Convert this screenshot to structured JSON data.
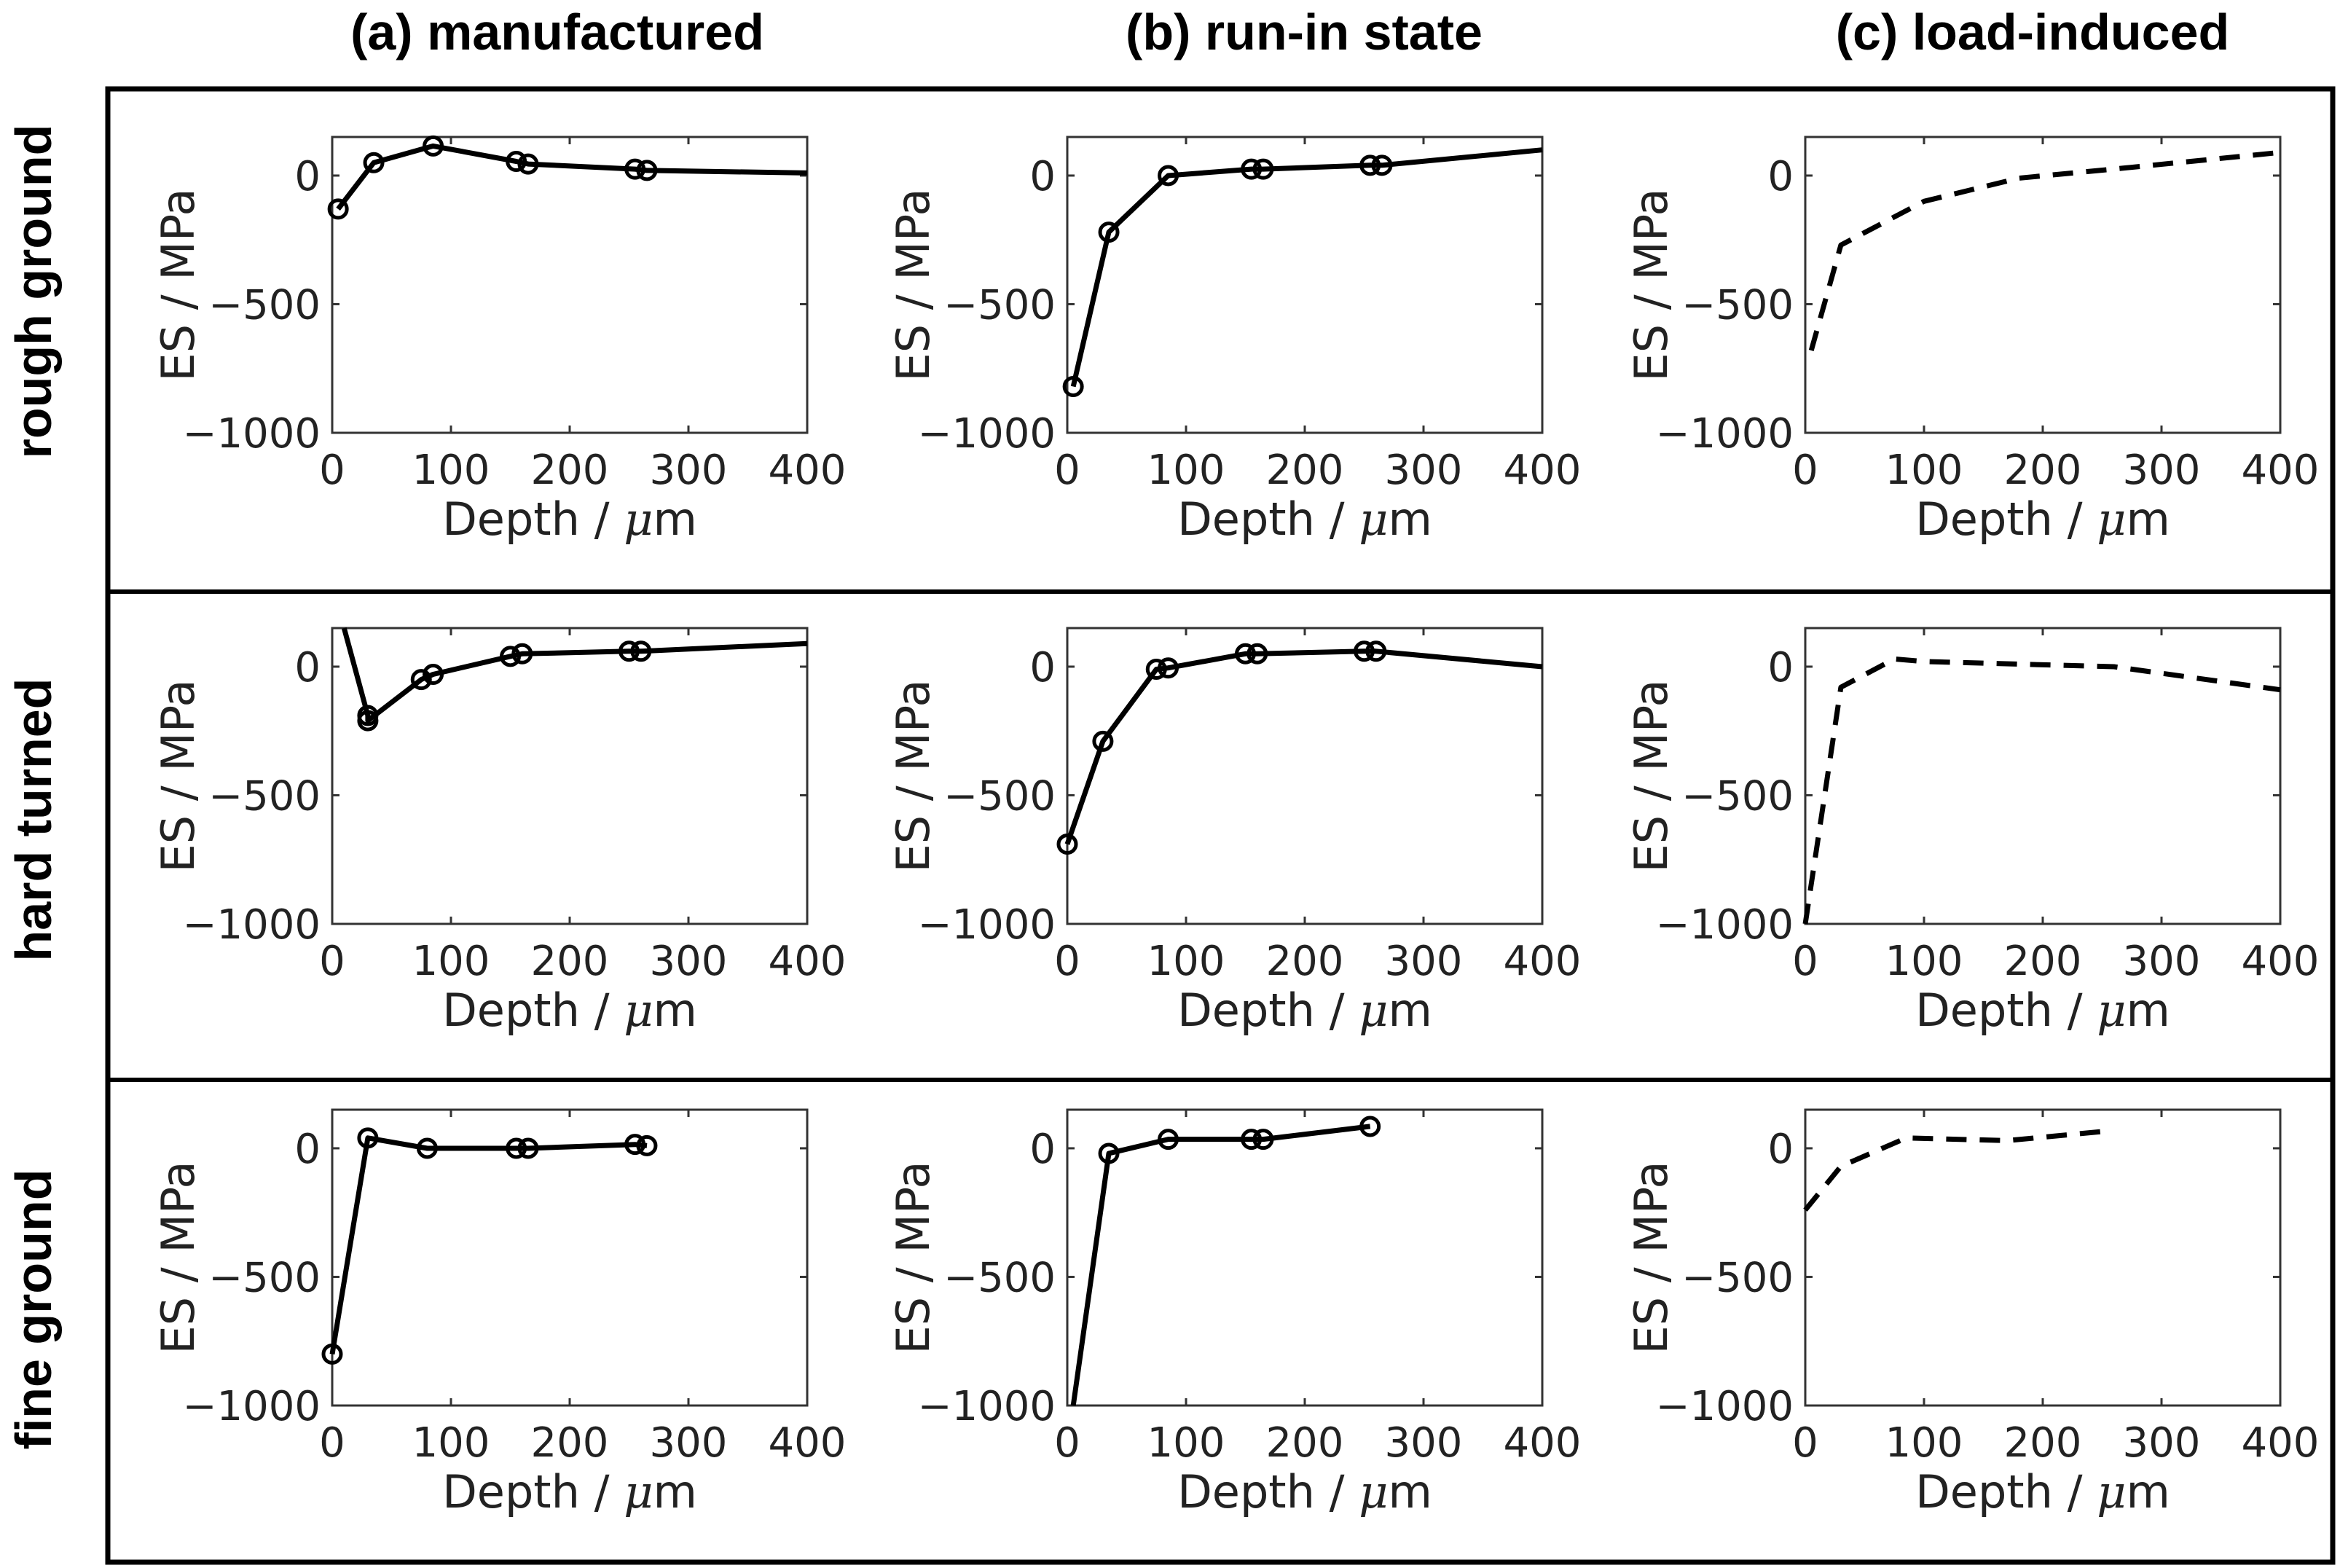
{
  "column_titles": [
    "(a) manufactured",
    "(b) run-in state",
    "(c) load-induced"
  ],
  "row_labels": [
    "rough ground",
    "hard turned",
    "fine ground"
  ],
  "chart_data": [
    {
      "type": "line",
      "row": "rough ground",
      "column": "(a) manufactured",
      "style": "solid-markers",
      "xlabel_text": "Depth /",
      "xlabel_unit": "μm",
      "ylabel": "ES / MPa",
      "xlim": [
        0,
        400
      ],
      "ylim": [
        -1000,
        150
      ],
      "xticks": [
        0,
        100,
        200,
        300,
        400
      ],
      "yticks": [
        -1000,
        -500,
        0
      ],
      "x": [
        5,
        35,
        85,
        155,
        165,
        255,
        265,
        400
      ],
      "y": [
        -130,
        50,
        115,
        55,
        45,
        25,
        20,
        10
      ],
      "marked_points": 7
    },
    {
      "type": "line",
      "row": "rough ground",
      "column": "(b) run-in state",
      "style": "solid-markers",
      "xlabel_text": "Depth /",
      "xlabel_unit": "μm",
      "ylabel": "ES / MPa",
      "xlim": [
        0,
        400
      ],
      "ylim": [
        -1000,
        150
      ],
      "xticks": [
        0,
        100,
        200,
        300,
        400
      ],
      "yticks": [
        -1000,
        -500,
        0
      ],
      "x": [
        5,
        35,
        85,
        155,
        165,
        255,
        265,
        400
      ],
      "y": [
        -820,
        -220,
        0,
        25,
        25,
        40,
        40,
        100
      ],
      "marked_points": 7
    },
    {
      "type": "line",
      "row": "rough ground",
      "column": "(c) load-induced",
      "style": "dashed",
      "xlabel_text": "Depth /",
      "xlabel_unit": "μm",
      "ylabel": "ES / MPa",
      "xlim": [
        0,
        400
      ],
      "ylim": [
        -1000,
        150
      ],
      "xticks": [
        0,
        100,
        200,
        300,
        400
      ],
      "yticks": [
        -1000,
        -500,
        0
      ],
      "x": [
        5,
        30,
        100,
        180,
        270,
        400
      ],
      "y": [
        -680,
        -270,
        -100,
        -10,
        30,
        90
      ],
      "marked_points": 0
    },
    {
      "type": "line",
      "row": "hard turned",
      "column": "(a) manufactured",
      "style": "solid-markers",
      "xlabel_text": "Depth /",
      "xlabel_unit": "μm",
      "ylabel": "ES / MPa",
      "xlim": [
        0,
        400
      ],
      "ylim": [
        -1000,
        150
      ],
      "xticks": [
        0,
        100,
        200,
        300,
        400
      ],
      "yticks": [
        -1000,
        -500,
        0
      ],
      "x": [
        10,
        30,
        30,
        75,
        85,
        150,
        160,
        250,
        260,
        400
      ],
      "y": [
        150,
        -190,
        -210,
        -50,
        -30,
        40,
        50,
        60,
        60,
        90
      ],
      "marked_points": 8,
      "marker_start_index": 1
    },
    {
      "type": "line",
      "row": "hard turned",
      "column": "(b) run-in state",
      "style": "solid-markers",
      "xlabel_text": "Depth /",
      "xlabel_unit": "μm",
      "ylabel": "ES / MPa",
      "xlim": [
        0,
        400
      ],
      "ylim": [
        -1000,
        150
      ],
      "xticks": [
        0,
        100,
        200,
        300,
        400
      ],
      "yticks": [
        -1000,
        -500,
        0
      ],
      "x": [
        0,
        30,
        75,
        85,
        150,
        160,
        250,
        260,
        400
      ],
      "y": [
        -690,
        -290,
        -10,
        -5,
        50,
        50,
        60,
        60,
        0
      ],
      "marked_points": 8
    },
    {
      "type": "line",
      "row": "hard turned",
      "column": "(c) load-induced",
      "style": "dashed",
      "xlabel_text": "Depth /",
      "xlabel_unit": "μm",
      "ylabel": "ES / MPa",
      "xlim": [
        0,
        400
      ],
      "ylim": [
        -1000,
        150
      ],
      "xticks": [
        0,
        100,
        200,
        300,
        400
      ],
      "yticks": [
        -1000,
        -500,
        0
      ],
      "x": [
        0,
        30,
        75,
        100,
        260,
        400
      ],
      "y": [
        -1000,
        -80,
        30,
        20,
        0,
        -90
      ],
      "marked_points": 0
    },
    {
      "type": "line",
      "row": "fine ground",
      "column": "(a) manufactured",
      "style": "solid-markers",
      "xlabel_text": "Depth /",
      "xlabel_unit": "μm",
      "ylabel": "ES / MPa",
      "xlim": [
        0,
        400
      ],
      "ylim": [
        -1000,
        150
      ],
      "xticks": [
        0,
        100,
        200,
        300,
        400
      ],
      "yticks": [
        -1000,
        -500,
        0
      ],
      "x": [
        0,
        30,
        80,
        155,
        165,
        255,
        265
      ],
      "y": [
        -800,
        40,
        0,
        0,
        0,
        15,
        10
      ],
      "marked_points": 7
    },
    {
      "type": "line",
      "row": "fine ground",
      "column": "(b) run-in state",
      "style": "solid-markers",
      "xlabel_text": "Depth /",
      "xlabel_unit": "μm",
      "ylabel": "ES / MPa",
      "xlim": [
        0,
        400
      ],
      "ylim": [
        -1000,
        150
      ],
      "xticks": [
        0,
        100,
        200,
        300,
        400
      ],
      "yticks": [
        -1000,
        -500,
        0
      ],
      "x": [
        5,
        35,
        85,
        155,
        165,
        255
      ],
      "y": [
        -1000,
        -20,
        35,
        35,
        35,
        85
      ],
      "marked_points": 5,
      "marker_start_index": 1
    },
    {
      "type": "line",
      "row": "fine ground",
      "column": "(c) load-induced",
      "style": "dashed",
      "xlabel_text": "Depth /",
      "xlabel_unit": "μm",
      "ylabel": "ES / MPa",
      "xlim": [
        0,
        400
      ],
      "ylim": [
        -1000,
        150
      ],
      "xticks": [
        0,
        100,
        200,
        300,
        400
      ],
      "yticks": [
        -1000,
        -500,
        0
      ],
      "x": [
        0,
        30,
        85,
        170,
        250
      ],
      "y": [
        -240,
        -70,
        40,
        30,
        65
      ],
      "marked_points": 0
    }
  ]
}
